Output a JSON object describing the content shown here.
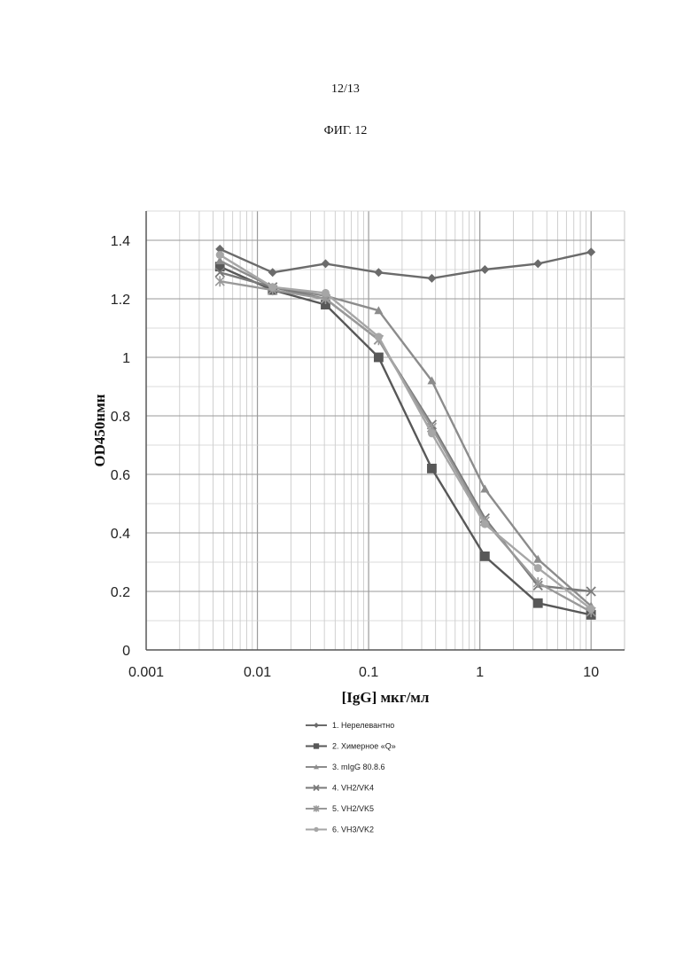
{
  "page": {
    "number": "12/13",
    "figure": "ФИГ. 12"
  },
  "chart_data": {
    "type": "line",
    "xscale": "log",
    "xlim": [
      0.001,
      20
    ],
    "ylim": [
      0,
      1.5
    ],
    "xlabel": "[IgG] мкг/мл",
    "ylabel": "OD450нмн",
    "xticks": [
      "0.001",
      "0.01",
      "0.1",
      "1",
      "10"
    ],
    "yticks": [
      "0",
      "0.2",
      "0.4",
      "0.6",
      "0.8",
      "1",
      "1.2",
      "1.4"
    ],
    "grid": true,
    "legend_position": "bottom",
    "x": [
      0.0046,
      0.0137,
      0.041,
      0.123,
      0.37,
      1.11,
      3.33,
      10
    ],
    "series": [
      {
        "name": "1. Нерелевантно",
        "marker": "diamond",
        "color": "#6b6b6b",
        "values": [
          1.37,
          1.29,
          1.32,
          1.29,
          1.27,
          1.3,
          1.32,
          1.36
        ]
      },
      {
        "name": "2. Химерное «Q»",
        "marker": "square",
        "color": "#585858",
        "values": [
          1.31,
          1.23,
          1.18,
          1.0,
          0.62,
          0.32,
          0.16,
          0.12
        ]
      },
      {
        "name": "3. mIgG 80.8.6",
        "marker": "triangle",
        "color": "#8c8c8c",
        "values": [
          1.33,
          1.24,
          1.21,
          1.16,
          0.92,
          0.55,
          0.31,
          0.15
        ]
      },
      {
        "name": "4. VH2/VK4",
        "marker": "x",
        "color": "#7a7a7a",
        "values": [
          1.29,
          1.24,
          1.2,
          1.06,
          0.77,
          0.45,
          0.22,
          0.2
        ]
      },
      {
        "name": "5. VH2/VK5",
        "marker": "star",
        "color": "#999999",
        "values": [
          1.26,
          1.23,
          1.2,
          1.06,
          0.76,
          0.44,
          0.23,
          0.13
        ]
      },
      {
        "name": "6. VH3/VK2",
        "marker": "circle",
        "color": "#a6a6a6",
        "values": [
          1.35,
          1.24,
          1.22,
          1.07,
          0.74,
          0.43,
          0.28,
          0.14
        ]
      }
    ]
  }
}
